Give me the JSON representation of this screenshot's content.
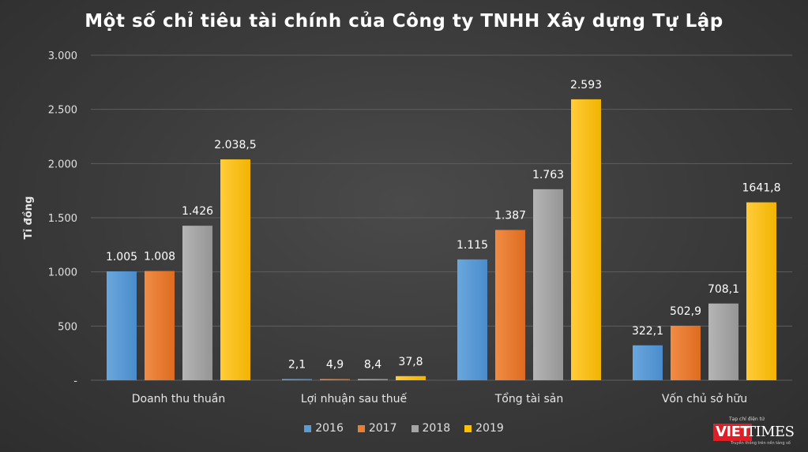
{
  "chart_data": {
    "type": "bar",
    "title": "Một số chỉ tiêu tài chính của Công ty TNHH Xây dựng Tự Lập",
    "ylabel": "Tỉ đồng",
    "xlabel": "",
    "ylim": [
      0,
      3000
    ],
    "grid": true,
    "legend": "bottom-center",
    "y_ticks": [
      "-",
      "500",
      "1.000",
      "1.500",
      "2.000",
      "2.500",
      "3.000"
    ],
    "categories": [
      "Doanh thu thuần",
      "Lợi nhuận sau thuế",
      "Tổng tài sản",
      "Vốn chủ sở hữu"
    ],
    "series": [
      {
        "name": "2016",
        "color": "#5b9bd5",
        "values": [
          1005,
          2.1,
          1115,
          322.1
        ],
        "labels": [
          "1.005",
          "2,1",
          "1.115",
          "322,1"
        ]
      },
      {
        "name": "2017",
        "color": "#ed7d31",
        "values": [
          1008,
          4.9,
          1387,
          502.9
        ],
        "labels": [
          "1.008",
          "4,9",
          "1.387",
          "502,9"
        ]
      },
      {
        "name": "2018",
        "color": "#a5a5a5",
        "values": [
          1426,
          8.4,
          1763,
          708.1
        ],
        "labels": [
          "1.426",
          "8,4",
          "1.763",
          "708,1"
        ]
      },
      {
        "name": "2019",
        "color": "#ffc000",
        "values": [
          2038.5,
          37.8,
          2593,
          1641.8
        ],
        "labels": [
          "2.038,5",
          "37,8",
          "2.593",
          "1641,8"
        ]
      }
    ]
  },
  "logo": {
    "top_text": "Tạp chí điện tử",
    "viet": "VIET",
    "times": "TIMES",
    "sub_text": "Truyền thông trên nền tảng số"
  }
}
